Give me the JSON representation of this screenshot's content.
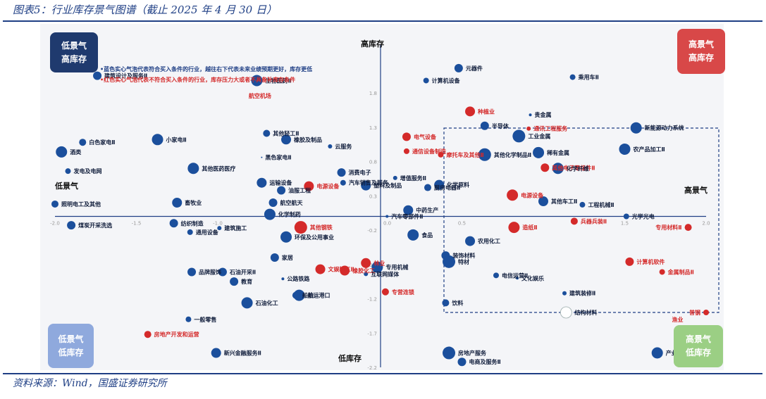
{
  "figure_title": "图表5：行业库存景气图谱（截止 2025 年 4 月 30 日）",
  "source": "资料来源：Wind，国盛证券研究所",
  "notes": {
    "blue": "•蓝色实心气泡代表符合买入条件的行业，越往右下代表未来业绩预期更好，库存更低",
    "red": "•红色实心气泡代表不符合买入条件的行业，库存压力大或者不具备补库存条件"
  },
  "quadrants": {
    "top_left": [
      "低景气",
      "高库存"
    ],
    "top_right": [
      "高景气",
      "高库存"
    ],
    "bottom_left": [
      "低景气",
      "低库存"
    ],
    "bottom_right": [
      "高景气",
      "低库存"
    ]
  },
  "axis_titles": {
    "top": "高库存",
    "bottom": "低库存",
    "left": "低景气",
    "right": "高景气"
  },
  "colors": {
    "buy": "#1b4f9c",
    "not_buy": "#d42a2a",
    "axis": "#1f3f85",
    "q_tl": "#1f3a6e",
    "q_tr": "#d84848",
    "q_bl": "#8fa9dd",
    "q_br": "#9bcf84"
  },
  "chart_data": {
    "type": "scatter",
    "xlim": [
      -2.0,
      2.0
    ],
    "ylim": [
      -2.2,
      2.2
    ],
    "xticks": [
      {
        "v": -2.0,
        "label": "-2.0"
      },
      {
        "v": -1.5,
        "label": "-1.5"
      },
      {
        "v": -1.0,
        "label": "-1.0"
      },
      {
        "v": 0.5,
        "label": "0.5"
      },
      {
        "v": 1.5,
        "label": "1.5"
      },
      {
        "v": 2.0,
        "label": "2.0"
      }
    ],
    "yticks": [
      {
        "v": 1.8,
        "label": "1.8"
      },
      {
        "v": 1.3,
        "label": "1.3"
      },
      {
        "v": 0.8,
        "label": "0.8"
      },
      {
        "v": 0.3,
        "label": "0.3"
      },
      {
        "v": -0.2,
        "label": "-0.2"
      },
      {
        "v": -0.7,
        "label": "-0.7"
      },
      {
        "v": -1.2,
        "label": "-1.2"
      },
      {
        "v": -1.7,
        "label": "-1.7"
      },
      {
        "v": -2.2,
        "label": "-2.2"
      }
    ],
    "origin_label": "0.0",
    "points": [
      {
        "name": "建筑设计及服务Ⅱ",
        "x": -1.74,
        "y": 2.05,
        "r": 6,
        "c": "b"
      },
      {
        "name": "生物医药Ⅱ",
        "x": -0.76,
        "y": 1.98,
        "r": 8,
        "c": "b"
      },
      {
        "name": "元器件",
        "x": 0.48,
        "y": 2.16,
        "r": 6,
        "c": "b"
      },
      {
        "name": "计算机设备",
        "x": 0.28,
        "y": 1.98,
        "r": 4,
        "c": "b"
      },
      {
        "name": "乘用车Ⅱ",
        "x": 1.18,
        "y": 2.03,
        "r": 4,
        "c": "b"
      },
      {
        "name": "种植业",
        "x": 0.55,
        "y": 1.53,
        "r": 7,
        "c": "r"
      },
      {
        "name": "贵金属",
        "x": 0.92,
        "y": 1.48,
        "r": 2,
        "c": "b"
      },
      {
        "name": "半导体",
        "x": 0.64,
        "y": 1.32,
        "r": 6,
        "c": "b"
      },
      {
        "name": "通讯工程服务",
        "x": 0.91,
        "y": 1.28,
        "r": 3,
        "c": "r"
      },
      {
        "name": "工业金属",
        "x": 0.85,
        "y": 1.17,
        "r": 9,
        "c": "b"
      },
      {
        "name": "新能源动力系统",
        "x": 1.57,
        "y": 1.29,
        "r": 8,
        "c": "b"
      },
      {
        "name": "电气设备",
        "x": 0.16,
        "y": 1.16,
        "r": 6,
        "c": "r"
      },
      {
        "name": "其他轻工Ⅱ",
        "x": -0.7,
        "y": 1.21,
        "r": 5,
        "c": "b"
      },
      {
        "name": "白色家电Ⅱ",
        "x": -1.83,
        "y": 1.08,
        "r": 5,
        "c": "b"
      },
      {
        "name": "小家电Ⅱ",
        "x": -1.37,
        "y": 1.12,
        "r": 8,
        "c": "b"
      },
      {
        "name": "橡胶及制品",
        "x": -0.58,
        "y": 1.12,
        "r": 7,
        "c": "b"
      },
      {
        "name": "云服务",
        "x": -0.31,
        "y": 1.02,
        "r": 3,
        "c": "b"
      },
      {
        "name": "酒类",
        "x": -1.96,
        "y": 0.94,
        "r": 8,
        "c": "b"
      },
      {
        "name": "通信设备制造",
        "x": 0.16,
        "y": 0.95,
        "r": 4,
        "c": "r"
      },
      {
        "name": "摩托车及其他Ⅱ",
        "x": 0.37,
        "y": 0.9,
        "r": 4,
        "c": "r"
      },
      {
        "name": "黑色家电Ⅱ",
        "x": -0.73,
        "y": 0.86,
        "r": 1,
        "c": "b"
      },
      {
        "name": "其他化学制品Ⅱ",
        "x": 0.64,
        "y": 0.9,
        "r": 9,
        "c": "b"
      },
      {
        "name": "稀有金属",
        "x": 0.97,
        "y": 0.93,
        "r": 8,
        "c": "b"
      },
      {
        "name": "农产品加工Ⅱ",
        "x": 1.5,
        "y": 0.98,
        "r": 8,
        "c": "b"
      },
      {
        "name": "发电及电网",
        "x": -1.92,
        "y": 0.66,
        "r": 4,
        "c": "b"
      },
      {
        "name": "其他医药医疗",
        "x": -1.15,
        "y": 0.7,
        "r": 8,
        "c": "b"
      },
      {
        "name": "消费电子",
        "x": -0.24,
        "y": 0.64,
        "r": 6,
        "c": "b"
      },
      {
        "name": "增值服务Ⅱ",
        "x": 0.09,
        "y": 0.56,
        "r": 3,
        "c": "b"
      },
      {
        "name": "其他电子零组件Ⅱ",
        "x": 1.01,
        "y": 0.71,
        "r": 6,
        "c": "r"
      },
      {
        "name": "化学纤维",
        "x": 1.09,
        "y": 0.7,
        "r": 8,
        "c": "b"
      },
      {
        "name": "运输设备",
        "x": -0.73,
        "y": 0.49,
        "r": 7,
        "c": "b"
      },
      {
        "name": "汽车销售及服务",
        "x": -0.23,
        "y": 0.49,
        "r": 4,
        "c": "b"
      },
      {
        "name": "塑料及制品",
        "x": -0.09,
        "y": 0.45,
        "r": 7,
        "c": "b"
      },
      {
        "name": "化学原料",
        "x": 0.36,
        "y": 0.46,
        "r": 7,
        "c": "b"
      },
      {
        "name": "电源设备",
        "x": -0.44,
        "y": 0.44,
        "r": 7,
        "c": "r"
      },
      {
        "name": "油服工程",
        "x": -0.61,
        "y": 0.38,
        "r": 6,
        "c": "b"
      },
      {
        "name": "厨房电器Ⅱ",
        "x": 0.29,
        "y": 0.42,
        "r": 5,
        "c": "b"
      },
      {
        "name": "电源设备",
        "x": 0.81,
        "y": 0.31,
        "r": 8,
        "c": "r"
      },
      {
        "name": "照明电工及其他",
        "x": -2.0,
        "y": 0.18,
        "r": 5,
        "c": "b"
      },
      {
        "name": "畜牧业",
        "x": -1.25,
        "y": 0.2,
        "r": 7,
        "c": "b"
      },
      {
        "name": "航空航天",
        "x": -0.66,
        "y": 0.2,
        "r": 6,
        "c": "b"
      },
      {
        "name": "其他车工Ⅱ",
        "x": 1.0,
        "y": 0.22,
        "r": 7,
        "c": "b"
      },
      {
        "name": "工程机械Ⅱ",
        "x": 1.24,
        "y": 0.17,
        "r": 4,
        "c": "b"
      },
      {
        "name": "中药生产",
        "x": 0.17,
        "y": 0.09,
        "r": 7,
        "c": "b"
      },
      {
        "name": "化学制药",
        "x": -0.68,
        "y": 0.03,
        "r": 8,
        "c": "b"
      },
      {
        "name": "汽车零部件Ⅱ",
        "x": 0.04,
        "y": 0.0,
        "r": 2,
        "c": "b"
      },
      {
        "name": "光学光电",
        "x": 1.51,
        "y": 0.0,
        "r": 4,
        "c": "b"
      },
      {
        "name": "煤炭开采洗选",
        "x": -1.9,
        "y": -0.13,
        "r": 6,
        "c": "b"
      },
      {
        "name": "纺织制造",
        "x": -1.27,
        "y": -0.1,
        "r": 6,
        "c": "b"
      },
      {
        "name": "建筑施工",
        "x": -0.99,
        "y": -0.17,
        "r": 3,
        "c": "b"
      },
      {
        "name": "通用设备",
        "x": -1.17,
        "y": -0.23,
        "r": 4,
        "c": "b"
      },
      {
        "name": "其他钢铁",
        "x": -0.49,
        "y": -0.16,
        "r": 9,
        "c": "r"
      },
      {
        "name": "兵器兵装Ⅱ",
        "x": 1.19,
        "y": -0.07,
        "r": 5,
        "c": "r"
      },
      {
        "name": "造纸Ⅱ",
        "x": 0.82,
        "y": -0.16,
        "r": 8,
        "c": "r"
      },
      {
        "name": "专用材料Ⅱ",
        "x": 1.89,
        "y": -0.16,
        "r": 5,
        "c": "r"
      },
      {
        "name": "环保及公用事业",
        "x": -0.58,
        "y": -0.3,
        "r": 8,
        "c": "b"
      },
      {
        "name": "食品",
        "x": 0.2,
        "y": -0.27,
        "r": 8,
        "c": "b"
      },
      {
        "name": "农用化工",
        "x": 0.55,
        "y": -0.36,
        "r": 7,
        "c": "b"
      },
      {
        "name": "家居",
        "x": -0.65,
        "y": -0.6,
        "r": 6,
        "c": "b"
      },
      {
        "name": "装饰材料",
        "x": 0.4,
        "y": -0.57,
        "r": 6,
        "c": "b"
      },
      {
        "name": "特材",
        "x": 0.42,
        "y": -0.66,
        "r": 9,
        "c": "b"
      },
      {
        "name": "计算机软件",
        "x": 1.53,
        "y": -0.66,
        "r": 6,
        "c": "r"
      },
      {
        "name": "品牌服饰",
        "x": -1.16,
        "y": -0.81,
        "r": 6,
        "c": "b"
      },
      {
        "name": "石油开采Ⅱ",
        "x": -0.97,
        "y": -0.81,
        "r": 6,
        "c": "b"
      },
      {
        "name": "文娱轻工Ⅱ",
        "x": -0.37,
        "y": -0.77,
        "r": 7,
        "c": "r"
      },
      {
        "name": "橡胶化工",
        "x": -0.22,
        "y": -0.79,
        "r": 7,
        "c": "r"
      },
      {
        "name": "林业",
        "x": -0.09,
        "y": -0.68,
        "r": 7,
        "c": "r"
      },
      {
        "name": "专用机械",
        "x": -0.02,
        "y": -0.74,
        "r": 8,
        "c": "b"
      },
      {
        "name": "互联网媒体",
        "x": -0.09,
        "y": -0.84,
        "r": 3,
        "c": "b"
      },
      {
        "name": "金属制品Ⅱ",
        "x": 1.73,
        "y": -0.81,
        "r": 4,
        "c": "r"
      },
      {
        "name": "电信运营Ⅱ",
        "x": 0.71,
        "y": -0.86,
        "r": 4,
        "c": "b"
      },
      {
        "name": "文化娱乐",
        "x": 0.84,
        "y": -0.9,
        "r": 2,
        "c": "b"
      },
      {
        "name": "教育",
        "x": -0.9,
        "y": -0.95,
        "r": 6,
        "c": "b"
      },
      {
        "name": "公路铁路",
        "x": -0.6,
        "y": -0.91,
        "r": 2,
        "c": "b"
      },
      {
        "name": "专营连锁",
        "x": 0.03,
        "y": -1.1,
        "r": 5,
        "c": "r"
      },
      {
        "name": "建筑装修Ⅱ",
        "x": 1.13,
        "y": -1.12,
        "r": 3,
        "c": "b"
      },
      {
        "name": "航运港口",
        "x": -0.5,
        "y": -1.15,
        "r": 8,
        "c": "b"
      },
      {
        "name": "船舶",
        "x": -0.52,
        "y": -1.15,
        "r": 5,
        "c": "b"
      },
      {
        "name": "石油化工",
        "x": -0.82,
        "y": -1.26,
        "r": 8,
        "c": "b"
      },
      {
        "name": "饮料",
        "x": 0.4,
        "y": -1.26,
        "r": 5,
        "c": "b"
      },
      {
        "name": "结构材料",
        "x": 1.14,
        "y": -1.4,
        "r": 8,
        "c": "w"
      },
      {
        "name": "普钢",
        "x": 2.0,
        "y": -1.4,
        "r": 4,
        "c": "r"
      },
      {
        "name": "一般零售",
        "x": -1.18,
        "y": -1.5,
        "r": 4,
        "c": "b"
      },
      {
        "name": "房地产开发和运营",
        "x": -1.43,
        "y": -1.72,
        "r": 5,
        "c": "r"
      },
      {
        "name": "新兴金融服务Ⅱ",
        "x": -1.01,
        "y": -1.99,
        "r": 7,
        "c": "b"
      },
      {
        "name": "房地产服务",
        "x": 0.42,
        "y": -1.99,
        "r": 9,
        "c": "b"
      },
      {
        "name": "电商及服务Ⅱ",
        "x": 0.5,
        "y": -2.12,
        "r": 6,
        "c": "b"
      },
      {
        "name": "产业互联网",
        "x": 1.7,
        "y": -1.99,
        "r": 8,
        "c": "b"
      }
    ],
    "extra_labels": [
      {
        "text": "航空机场",
        "x": -0.81,
        "y": 1.76,
        "c": "r"
      },
      {
        "text": "渔业",
        "x": 1.79,
        "y": -1.5,
        "c": "r"
      }
    ]
  }
}
